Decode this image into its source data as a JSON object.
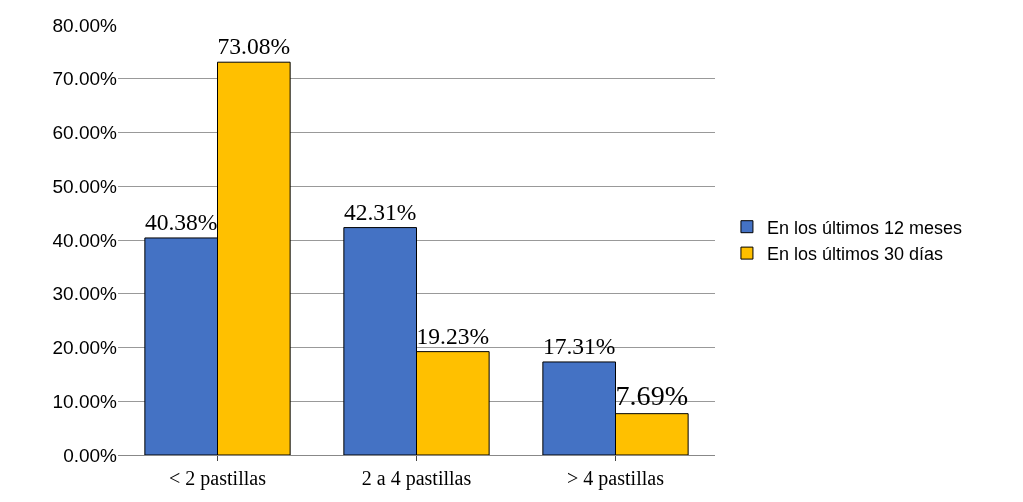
{
  "chart_data": {
    "type": "bar",
    "categories": [
      "< 2 pastillas",
      "2 a 4 pastillas",
      "> 4 pastillas"
    ],
    "series": [
      {
        "name": "En los últimos 12 meses",
        "color": "#4472c4",
        "values": [
          40.38,
          42.31,
          17.31
        ],
        "value_labels": [
          "40.38%",
          "42.31%",
          "17.31%"
        ]
      },
      {
        "name": "En los últimos 30 días",
        "color": "#ffc000",
        "values": [
          73.08,
          19.23,
          7.69
        ],
        "value_labels": [
          "73.08%",
          "19.23%",
          "7.69%"
        ]
      }
    ],
    "ylim": [
      0,
      80
    ],
    "yticks": [
      {
        "value": 0,
        "label": "0.00%"
      },
      {
        "value": 10,
        "label": "10.00%"
      },
      {
        "value": 20,
        "label": "20.00%"
      },
      {
        "value": 30,
        "label": "30.00%"
      },
      {
        "value": 40,
        "label": "40.00%"
      },
      {
        "value": 50,
        "label": "50.00%"
      },
      {
        "value": 60,
        "label": "60.00%"
      },
      {
        "value": 70,
        "label": "70.00%"
      },
      {
        "value": 80,
        "label": "80.00%"
      }
    ],
    "grid": "y",
    "legend": "right"
  }
}
